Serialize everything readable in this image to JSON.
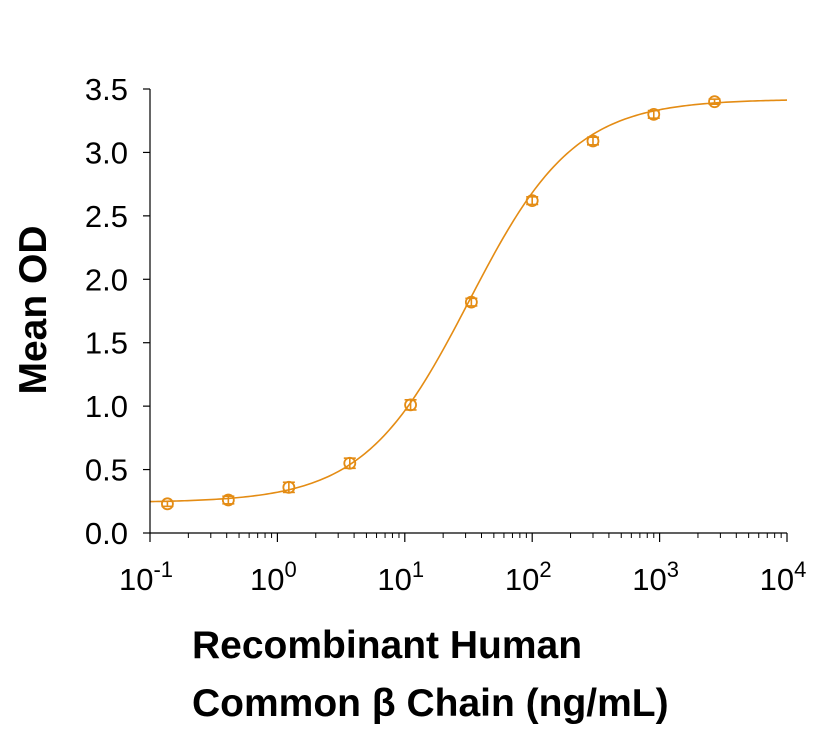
{
  "chart_data": {
    "type": "scatter",
    "xlabel_lines": [
      "Recombinant Human",
      "Common β Chain (ng/mL)"
    ],
    "ylabel": "Mean OD",
    "x_scale": "log",
    "xlim": [
      0.1,
      10000
    ],
    "ylim": [
      0.0,
      3.5
    ],
    "y_ticks": [
      "0.0",
      "0.5",
      "1.0",
      "1.5",
      "2.0",
      "2.5",
      "3.0",
      "3.5"
    ],
    "x_ticks": [
      {
        "base": "10",
        "exp": "-1"
      },
      {
        "base": "10",
        "exp": "0"
      },
      {
        "base": "10",
        "exp": "1"
      },
      {
        "base": "10",
        "exp": "2"
      },
      {
        "base": "10",
        "exp": "3"
      },
      {
        "base": "10",
        "exp": "4"
      }
    ],
    "series": [
      {
        "color": "#E48C14",
        "marker": "open-circle",
        "error_bars": true,
        "fit": "4-parameter-logistic",
        "points": [
          {
            "x": 0.137,
            "y": 0.23,
            "err": 0.02
          },
          {
            "x": 0.412,
            "y": 0.26,
            "err": 0.03
          },
          {
            "x": 1.23,
            "y": 0.36,
            "err": 0.04
          },
          {
            "x": 3.7,
            "y": 0.55,
            "err": 0.04
          },
          {
            "x": 11.1,
            "y": 1.01,
            "err": 0.04
          },
          {
            "x": 33.3,
            "y": 1.82,
            "err": 0.03
          },
          {
            "x": 100,
            "y": 2.62,
            "err": 0.03
          },
          {
            "x": 300,
            "y": 3.09,
            "err": 0.03
          },
          {
            "x": 900,
            "y": 3.3,
            "err": 0.03
          },
          {
            "x": 2700,
            "y": 3.4,
            "err": 0.02
          }
        ]
      }
    ]
  }
}
